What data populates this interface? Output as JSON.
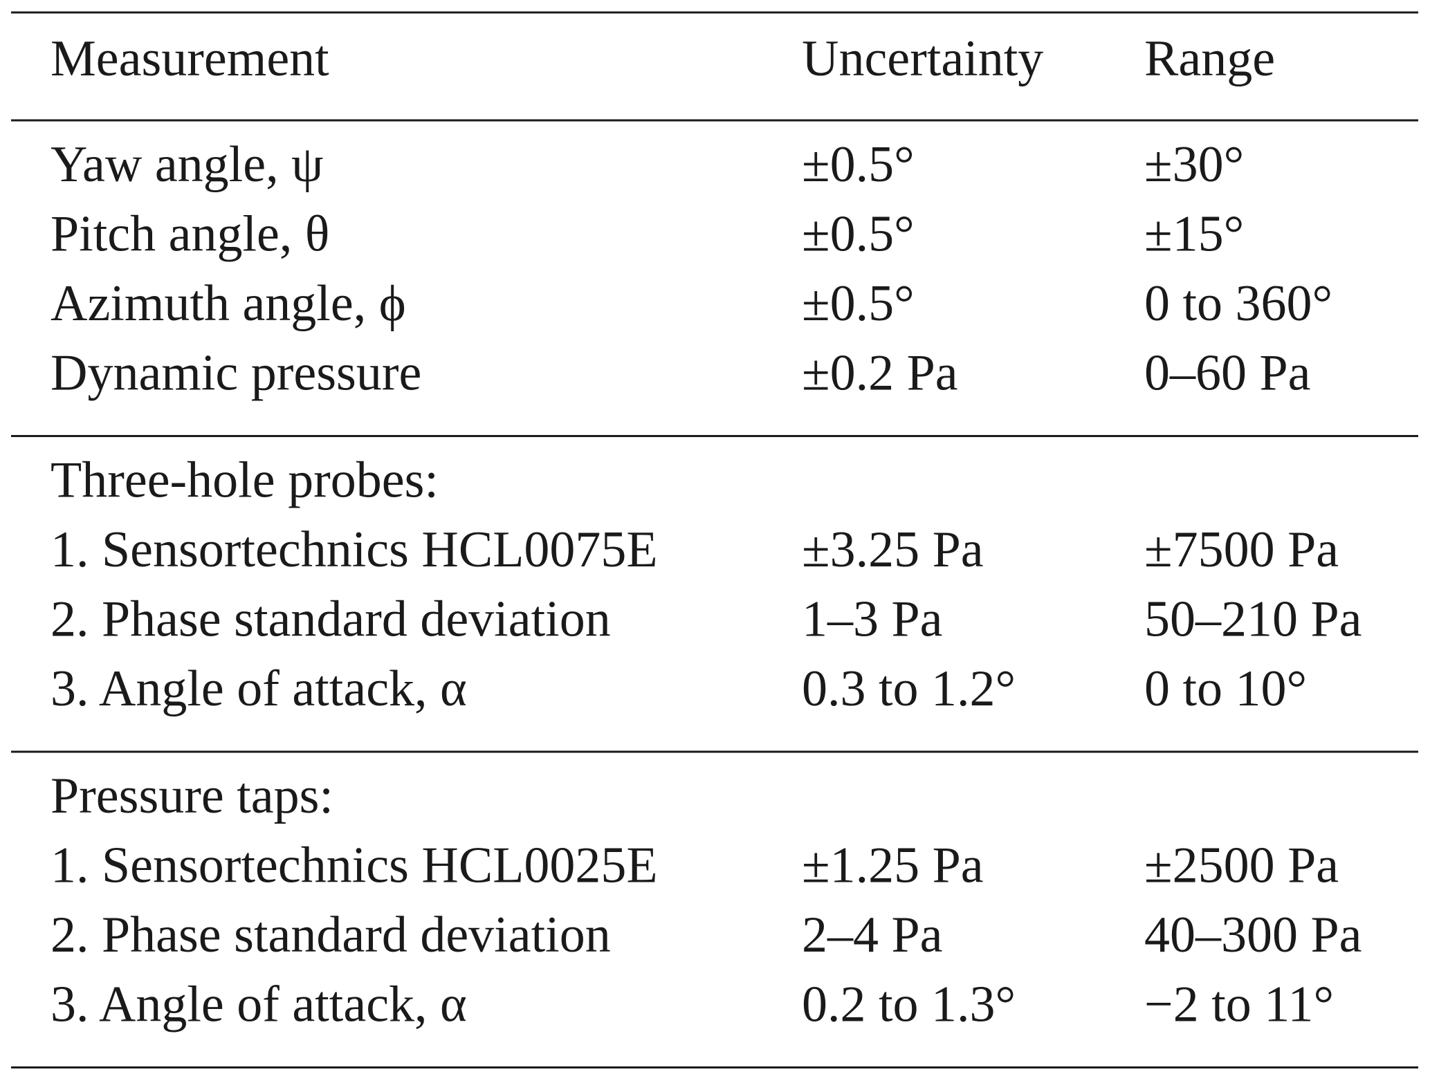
{
  "table": {
    "header": [
      "Measurement",
      "Uncertainty",
      "Range"
    ],
    "sections": [
      {
        "rows": [
          [
            "Yaw angle, ψ",
            "±0.5°",
            "±30°"
          ],
          [
            "Pitch angle, θ",
            "±0.5°",
            "±15°"
          ],
          [
            "Azimuth angle, ϕ",
            "±0.5°",
            "0 to 360°"
          ],
          [
            "Dynamic pressure",
            "±0.2 Pa",
            "0–60 Pa"
          ]
        ]
      },
      {
        "title": "Three-hole probes:",
        "rows": [
          [
            "1. Sensortechnics HCL0075E",
            "±3.25 Pa",
            "±7500 Pa"
          ],
          [
            "2. Phase standard deviation",
            "1–3 Pa",
            "50–210 Pa"
          ],
          [
            "3. Angle of attack, α",
            "0.3 to 1.2°",
            "0 to 10°"
          ]
        ]
      },
      {
        "title": "Pressure taps:",
        "rows": [
          [
            "1. Sensortechnics HCL0025E",
            "±1.25 Pa",
            "±2500 Pa"
          ],
          [
            "2. Phase standard deviation",
            "2–4 Pa",
            "40–300 Pa"
          ],
          [
            "3. Angle of attack, α",
            "0.2 to 1.3°",
            "−2 to 11°"
          ]
        ]
      }
    ]
  }
}
